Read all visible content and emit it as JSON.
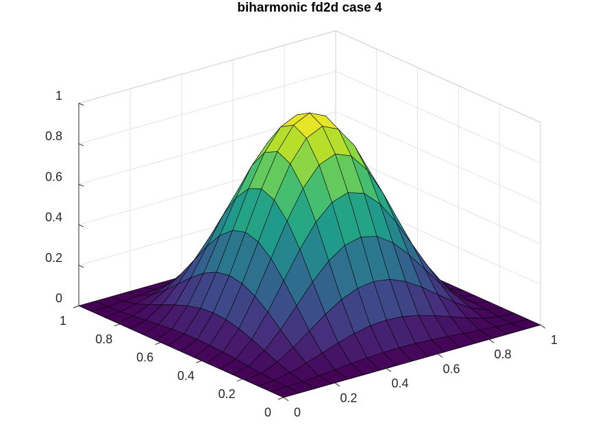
{
  "chart_data": {
    "type": "surface",
    "title": "biharmonic fd2d case 4",
    "xlabel": "",
    "ylabel": "",
    "zlabel": "",
    "xlim": [
      0,
      1
    ],
    "ylim": [
      0,
      1
    ],
    "zlim": [
      0,
      1
    ],
    "x_ticks": [
      "0",
      "0.2",
      "0.4",
      "0.6",
      "0.8",
      "1"
    ],
    "y_ticks": [
      "0",
      "0.2",
      "0.4",
      "0.6",
      "0.8",
      "1"
    ],
    "z_ticks": [
      "0",
      "0.2",
      "0.4",
      "0.6",
      "0.8",
      "1"
    ],
    "grid": true,
    "colormap": "viridis",
    "colormap_stops": [
      "#440154",
      "#482878",
      "#3e4989",
      "#31688e",
      "#26828e",
      "#1f9e89",
      "#35b779",
      "#6ece58",
      "#b5de2b",
      "#fde725"
    ],
    "surface": {
      "expression": "z = (1 - cos(2*pi*x)) * (1 - cos(2*pi*y)) / 4",
      "grid_points": 17,
      "z_max": 1.0
    }
  }
}
